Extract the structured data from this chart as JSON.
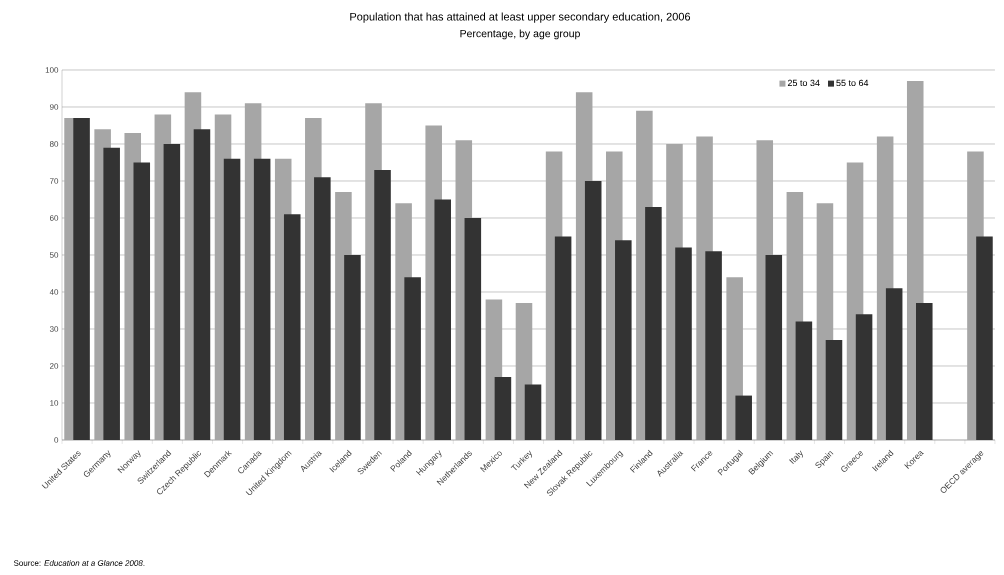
{
  "chart_data": {
    "type": "bar",
    "title": "Population that has attained at least upper secondary education, 2006",
    "subtitle": "Percentage, by age group",
    "categories": [
      "United States",
      "Germany",
      "Norway",
      "Switzerland",
      "Czech Republic",
      "Denmark",
      "Canada",
      "United Kingdom",
      "Austria",
      "Iceland",
      "Sweden",
      "Poland",
      "Hungary",
      "Netherlands",
      "Mexico",
      "Turkey",
      "New Zealand",
      "Slovak Republic",
      "Luxembourg",
      "Finland",
      "Australia",
      "France",
      "Portugal",
      "Belgium",
      "Italy",
      "Spain",
      "Greece",
      "Ireland",
      "Korea",
      null,
      "OECD average"
    ],
    "series": [
      {
        "name": "25 to 34",
        "color": "#a6a6a6",
        "values": [
          87,
          84,
          83,
          88,
          94,
          88,
          91,
          76,
          87,
          67,
          91,
          64,
          85,
          81,
          38,
          37,
          78,
          94,
          78,
          89,
          80,
          82,
          44,
          81,
          67,
          64,
          75,
          82,
          97,
          null,
          78
        ]
      },
      {
        "name": "55 to 64",
        "color": "#333333",
        "values": [
          87,
          79,
          75,
          80,
          84,
          76,
          76,
          61,
          71,
          50,
          73,
          44,
          65,
          60,
          17,
          15,
          55,
          70,
          54,
          63,
          52,
          51,
          12,
          50,
          32,
          27,
          34,
          41,
          37,
          null,
          55
        ]
      }
    ],
    "ylim": [
      0,
      100
    ],
    "yticks": [
      0,
      10,
      20,
      30,
      40,
      50,
      60,
      70,
      80,
      90,
      100
    ],
    "grid": "y",
    "legend": "top right",
    "annotations": [
      "Source: *Education at a Glance 2008*."
    ]
  }
}
